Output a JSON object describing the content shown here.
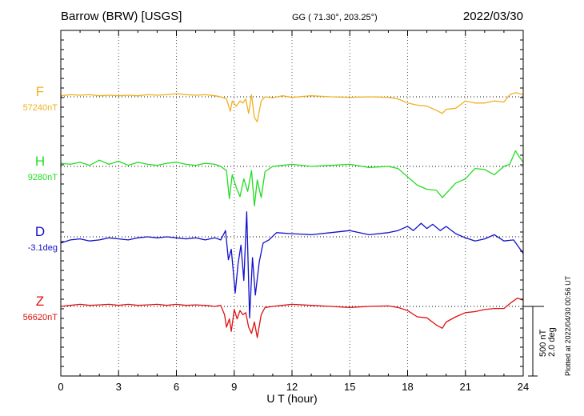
{
  "header": {
    "station": "Barrow (BRW)  [USGS]",
    "coords": "GG ( 71.30°, 203.25°)",
    "date": "2022/03/30"
  },
  "side_note": "Plotted at 2022/04/30 00:56 UT",
  "scale": {
    "value1": "500 nT",
    "value2": "2.0 deg"
  },
  "chart_data": {
    "type": "line",
    "xlabel": "U T (hour)",
    "xlim": [
      0,
      24
    ],
    "xticks": [
      0,
      3,
      6,
      9,
      12,
      15,
      18,
      21,
      24
    ],
    "grid": true,
    "series": [
      {
        "name": "F",
        "baseline_label": "57240nT",
        "color": "#f0b020",
        "x": [
          0,
          0.5,
          1,
          1.5,
          2,
          2.5,
          3,
          3.5,
          4,
          4.5,
          5,
          5.5,
          6,
          6.5,
          7,
          7.5,
          8,
          8.3,
          8.6,
          8.8,
          8.9,
          9.1,
          9.3,
          9.45,
          9.6,
          9.75,
          9.9,
          10.05,
          10.2,
          10.4,
          10.6,
          11,
          11.5,
          12,
          13,
          14,
          15,
          16,
          17,
          17.5,
          18,
          18.5,
          19,
          19.5,
          19.8,
          20,
          20.5,
          21,
          21.5,
          22,
          22.5,
          23,
          23.3,
          23.6,
          24
        ],
        "y": [
          10,
          20,
          15,
          20,
          10,
          15,
          10,
          15,
          10,
          20,
          15,
          20,
          30,
          20,
          15,
          20,
          10,
          0,
          -20,
          -140,
          -40,
          -90,
          -40,
          -60,
          -20,
          -160,
          20,
          -200,
          -240,
          -40,
          0,
          -10,
          10,
          -5,
          10,
          0,
          -5,
          0,
          -5,
          -20,
          -60,
          -80,
          -90,
          -130,
          -160,
          -120,
          -110,
          -40,
          -60,
          -60,
          -40,
          -50,
          20,
          40,
          20
        ]
      },
      {
        "name": "H",
        "baseline_label": "9280nT",
        "color": "#22dd22",
        "x": [
          0,
          0.5,
          1,
          1.5,
          2,
          2.5,
          3,
          3.5,
          4,
          4.5,
          5,
          5.5,
          6,
          6.5,
          7,
          7.5,
          8,
          8.3,
          8.6,
          8.75,
          8.9,
          9.1,
          9.3,
          9.5,
          9.7,
          9.9,
          10.05,
          10.2,
          10.4,
          10.6,
          11,
          11.5,
          12,
          13,
          14,
          15,
          16,
          17,
          17.5,
          18,
          18.5,
          19,
          19.5,
          19.8,
          20,
          20.5,
          21,
          21.5,
          22,
          22.5,
          23,
          23.3,
          23.6,
          23.8,
          24
        ],
        "y": [
          30,
          20,
          40,
          10,
          60,
          20,
          50,
          10,
          40,
          20,
          10,
          30,
          40,
          20,
          10,
          30,
          20,
          0,
          -40,
          -310,
          -80,
          -200,
          -290,
          -120,
          -240,
          -40,
          -380,
          -130,
          -300,
          -50,
          0,
          10,
          20,
          0,
          10,
          20,
          -10,
          0,
          -20,
          -100,
          -180,
          -220,
          -230,
          -300,
          -260,
          -160,
          -120,
          -20,
          -30,
          -80,
          0,
          20,
          150,
          90,
          40
        ]
      },
      {
        "name": "D",
        "baseline_label": "-3.1deg",
        "color": "#1010cc",
        "x": [
          0,
          0.5,
          1,
          1.5,
          2,
          2.5,
          3,
          3.5,
          4,
          4.5,
          5,
          5.5,
          6,
          6.5,
          7,
          7.5,
          8,
          8.3,
          8.55,
          8.7,
          8.85,
          9.05,
          9.2,
          9.35,
          9.5,
          9.65,
          9.8,
          9.95,
          10.1,
          10.3,
          10.5,
          10.8,
          11.2,
          12,
          13,
          14,
          15,
          16,
          17,
          17.5,
          18,
          18.3,
          18.7,
          19,
          19.3,
          19.7,
          20,
          20.5,
          21,
          21.5,
          22,
          22.5,
          23,
          23.5,
          24
        ],
        "y": [
          -60,
          -30,
          -20,
          -40,
          -30,
          -10,
          -20,
          -30,
          -10,
          0,
          -10,
          0,
          -10,
          -20,
          -10,
          -30,
          -10,
          -30,
          60,
          -220,
          -120,
          -540,
          -260,
          -80,
          -420,
          240,
          -780,
          -200,
          -560,
          -240,
          -60,
          -30,
          40,
          30,
          20,
          40,
          60,
          20,
          40,
          60,
          100,
          60,
          130,
          80,
          120,
          60,
          100,
          30,
          -10,
          -40,
          -20,
          20,
          -40,
          -30,
          -160
        ]
      },
      {
        "name": "Z",
        "baseline_label": "56620nT",
        "color": "#dd1111",
        "x": [
          0,
          0.5,
          1,
          1.5,
          2,
          2.5,
          3,
          3.5,
          4,
          4.5,
          5,
          5.5,
          6,
          6.5,
          7,
          7.5,
          8,
          8.3,
          8.5,
          8.6,
          8.75,
          8.85,
          9.0,
          9.15,
          9.3,
          9.45,
          9.6,
          9.75,
          9.9,
          10.05,
          10.2,
          10.4,
          10.6,
          11,
          11.5,
          12,
          13,
          14,
          15,
          16,
          17,
          17.5,
          18,
          18.5,
          19,
          19.5,
          19.8,
          20,
          20.5,
          21,
          21.5,
          22,
          22.5,
          23,
          23.4,
          23.7,
          24
        ],
        "y": [
          0,
          10,
          20,
          10,
          15,
          20,
          10,
          20,
          10,
          15,
          20,
          10,
          20,
          10,
          15,
          10,
          0,
          10,
          -80,
          -200,
          -120,
          -240,
          -30,
          -120,
          -40,
          -80,
          -60,
          -200,
          -260,
          -150,
          -300,
          -80,
          -10,
          0,
          10,
          20,
          10,
          0,
          -10,
          0,
          5,
          -10,
          -40,
          -100,
          -110,
          -180,
          -210,
          -150,
          -100,
          -60,
          -50,
          -30,
          -20,
          -20,
          40,
          80,
          60
        ]
      }
    ]
  }
}
